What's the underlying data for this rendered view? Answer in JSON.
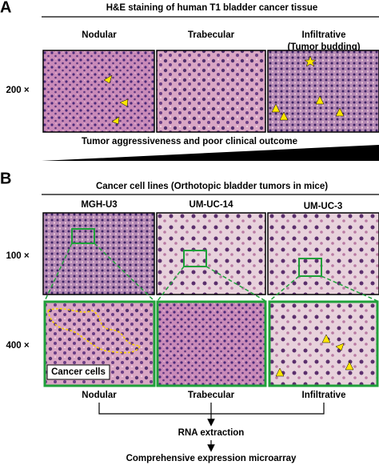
{
  "panel_a": {
    "label": "A",
    "title": "H&E staining of human T1 bladder cancer tissue",
    "columns": [
      "Nodular",
      "Trabecular",
      "Infiltrative"
    ],
    "infiltrative_note": "(Tumor budding)",
    "magnification": "200 ×",
    "gradient_label": "Tumor aggressiveness and poor clinical outcome"
  },
  "panel_b": {
    "label": "B",
    "title": "Cancer cell lines (Orthotopic bladder tumors in mice)",
    "cell_lines": [
      "MGH-U3",
      "UM-UC-14",
      "UM-UC-3"
    ],
    "magnifications": [
      "100 ×",
      "400 ×"
    ],
    "inset_label": "Cancer cells",
    "patterns": [
      "Nodular",
      "Trabecular",
      "Infiltrative"
    ],
    "steps": [
      "RNA extraction",
      "Comprehensive expression microarray"
    ]
  }
}
